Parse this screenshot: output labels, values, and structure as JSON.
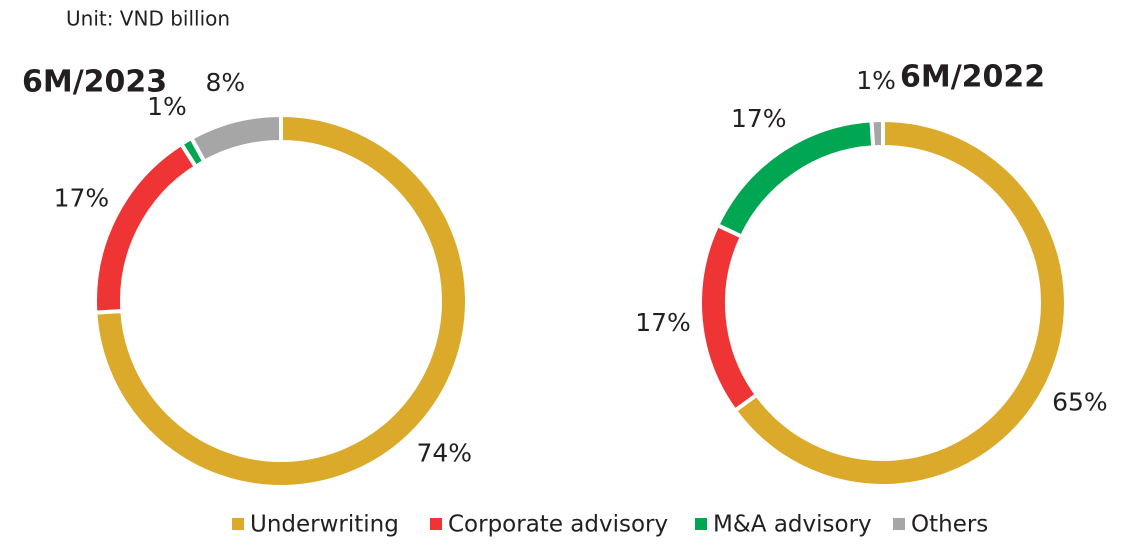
{
  "subtitle": "Unit: VND billion",
  "chart_data": [
    {
      "type": "pie",
      "title": "6M/2023",
      "categories": [
        "Underwriting",
        "Corporate advisory",
        "M&A advisory",
        "Others"
      ],
      "values": [
        74,
        17,
        1,
        8
      ],
      "value_labels": [
        "74%",
        "17%",
        "1%",
        "8%"
      ],
      "colors": [
        "#dbaa2b",
        "#ee3434",
        "#00a651",
        "#a6a6a6"
      ]
    },
    {
      "type": "pie",
      "title": "6M/2022",
      "categories": [
        "Underwriting",
        "Corporate advisory",
        "M&A advisory",
        "Others"
      ],
      "values": [
        65,
        17,
        17,
        1
      ],
      "value_labels": [
        "65%",
        "17%",
        "17%",
        "1%"
      ],
      "colors": [
        "#dbaa2b",
        "#ee3434",
        "#00a651",
        "#a6a6a6"
      ]
    }
  ]
}
